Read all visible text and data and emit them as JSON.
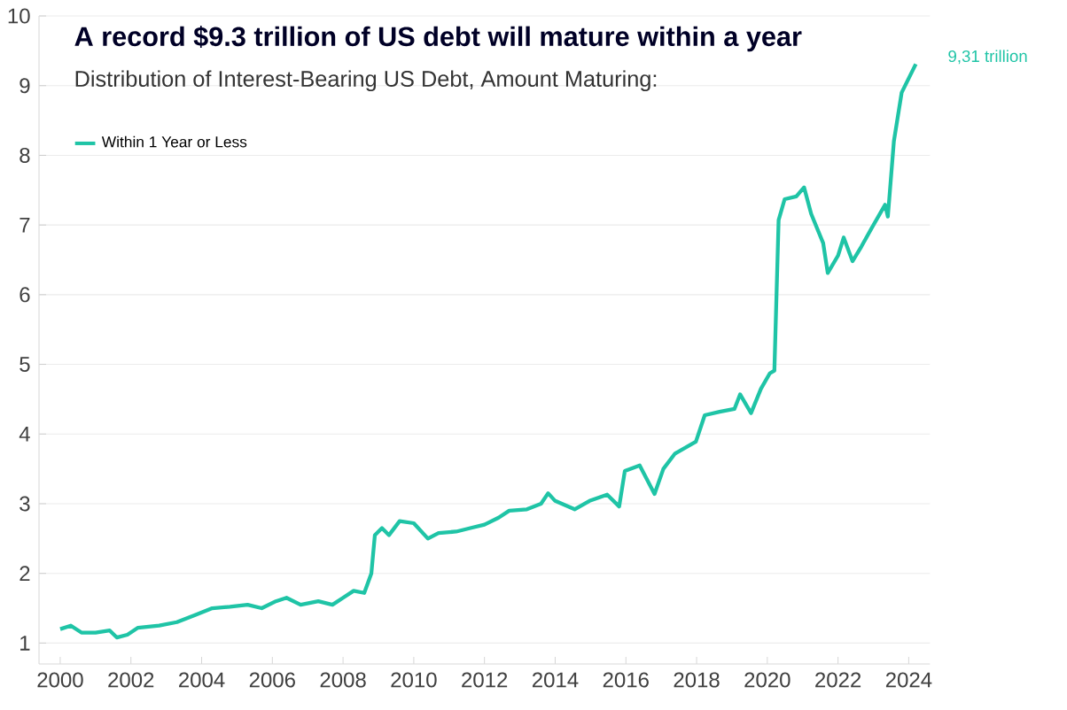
{
  "chart_data": {
    "type": "line",
    "title": "A record $9.3 trillion of US debt will mature within a year",
    "subtitle": "Distribution of Interest-Bearing US Debt, Amount Maturing:",
    "x": [
      2000.0,
      2000.3,
      2000.6,
      2001.0,
      2001.4,
      2001.6,
      2001.9,
      2002.2,
      2002.8,
      2003.3,
      2003.8,
      2004.3,
      2004.8,
      2005.3,
      2005.7,
      2006.1,
      2006.4,
      2006.8,
      2007.3,
      2007.7,
      2008.0,
      2008.3,
      2008.6,
      2008.8,
      2008.9,
      2009.1,
      2009.3,
      2009.6,
      2010.0,
      2010.4,
      2010.7,
      2011.2,
      2011.6,
      2012.0,
      2012.4,
      2012.7,
      2013.2,
      2013.6,
      2013.8,
      2014.0,
      2014.55,
      2014.97,
      2015.47,
      2015.81,
      2015.97,
      2016.39,
      2016.81,
      2017.06,
      2017.39,
      2017.98,
      2018.23,
      2018.65,
      2019.07,
      2019.23,
      2019.54,
      2019.82,
      2020.07,
      2020.2,
      2020.32,
      2020.49,
      2020.82,
      2021.04,
      2021.24,
      2021.58,
      2021.71,
      2022.0,
      2022.16,
      2022.41,
      2022.66,
      2022.99,
      2023.33,
      2023.41,
      2023.58,
      2023.8,
      2024.2
    ],
    "series": [
      {
        "name": "Within 1 Year or Less",
        "color": "#1fc4a6",
        "values": [
          1.2,
          1.25,
          1.15,
          1.15,
          1.18,
          1.08,
          1.12,
          1.22,
          1.25,
          1.3,
          1.4,
          1.5,
          1.52,
          1.55,
          1.5,
          1.6,
          1.65,
          1.55,
          1.6,
          1.55,
          1.65,
          1.75,
          1.72,
          2.0,
          2.55,
          2.65,
          2.55,
          2.75,
          2.72,
          2.5,
          2.58,
          2.6,
          2.65,
          2.7,
          2.8,
          2.9,
          2.92,
          3.0,
          3.15,
          3.04,
          2.92,
          3.04,
          3.13,
          2.96,
          3.47,
          3.55,
          3.14,
          3.5,
          3.72,
          3.89,
          4.27,
          4.32,
          4.36,
          4.57,
          4.3,
          4.65,
          4.87,
          4.91,
          7.07,
          7.37,
          7.41,
          7.54,
          7.16,
          6.74,
          6.31,
          6.56,
          6.82,
          6.48,
          6.69,
          6.99,
          7.29,
          7.12,
          8.2,
          8.9,
          9.31
        ]
      }
    ],
    "xlim": [
      1999.4,
      2024.6
    ],
    "ylim": [
      0.7,
      10
    ],
    "xticks": [
      2000,
      2002,
      2004,
      2006,
      2008,
      2010,
      2012,
      2014,
      2016,
      2018,
      2020,
      2022,
      2024
    ],
    "yticks": [
      1,
      2,
      3,
      4,
      5,
      6,
      7,
      8,
      9,
      10
    ],
    "grid": "y",
    "legend": "top left",
    "line_style": "solid",
    "marker": "none",
    "annotations": [
      {
        "text": "9,31 trillion",
        "x": 2024.2,
        "y": 9.31
      }
    ]
  }
}
